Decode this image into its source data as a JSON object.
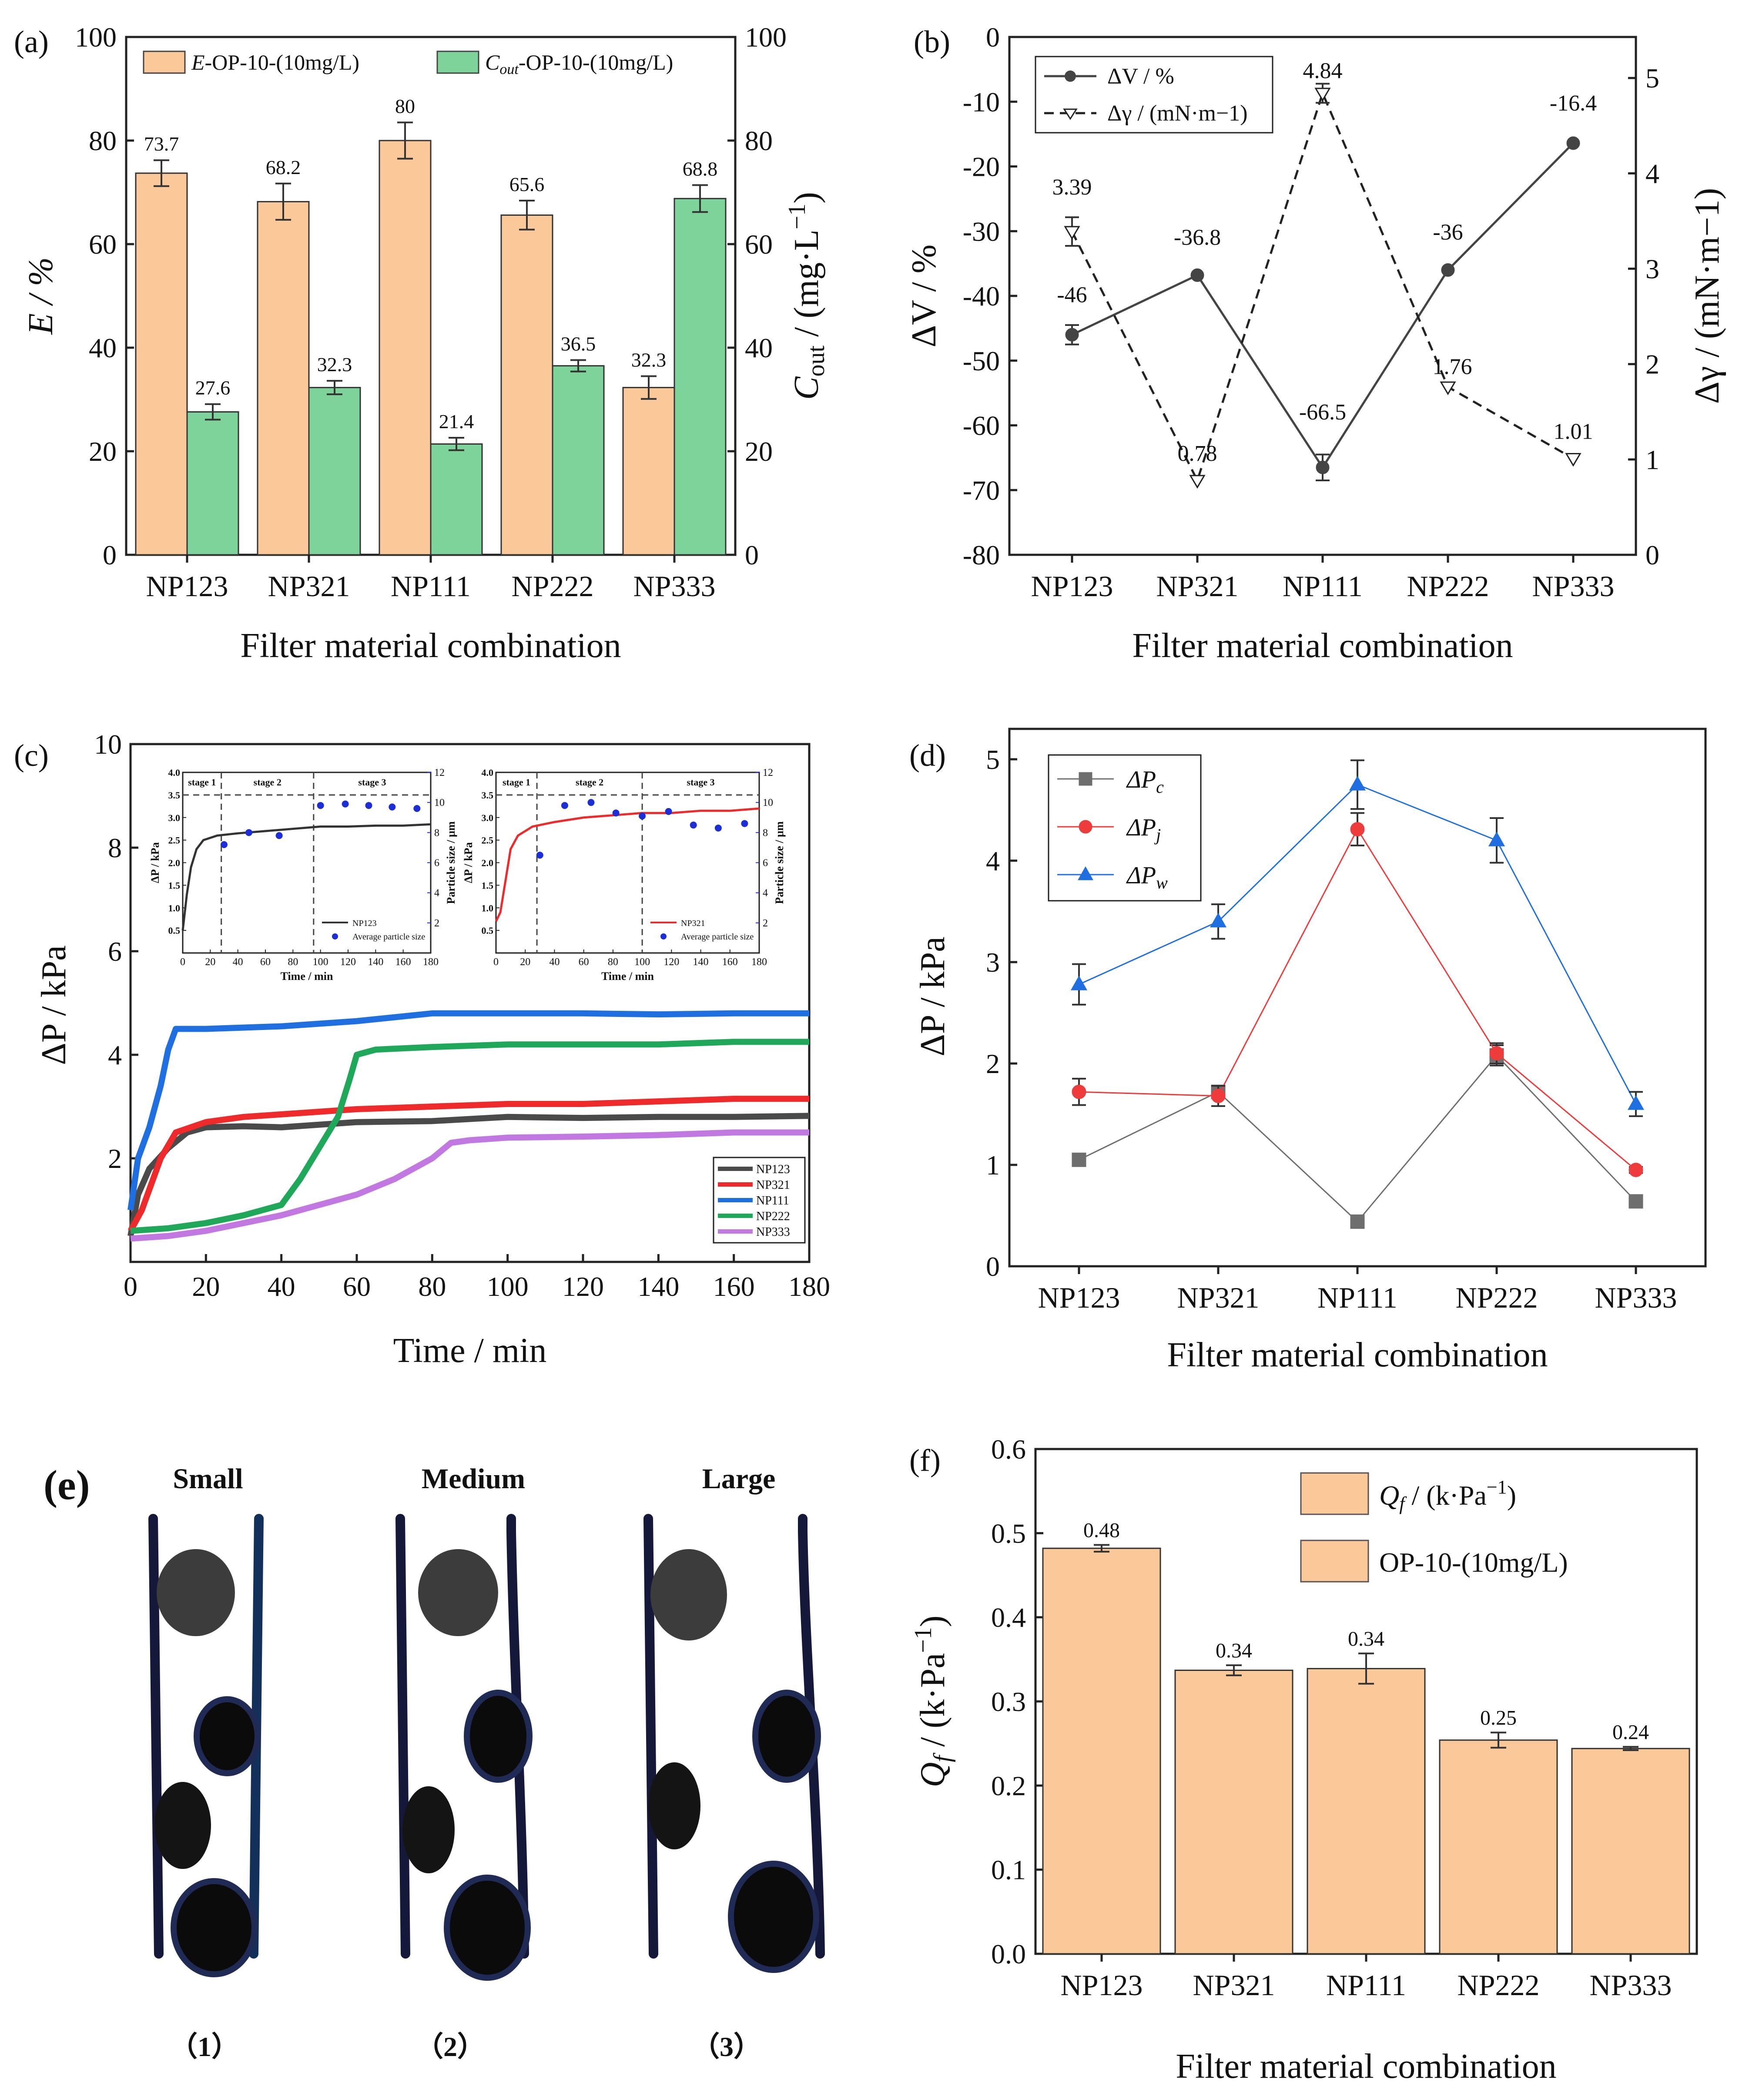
{
  "figure": {
    "panel_labels": [
      "(a)",
      "(b)",
      "(c)",
      "(d)",
      "(e)",
      "(f)"
    ]
  },
  "chart_data": [
    {
      "id": "a",
      "type": "bar",
      "categories": [
        "NP123",
        "NP321",
        "NP111",
        "NP222",
        "NP333"
      ],
      "series": [
        {
          "name": "E-OP-10-(10mg/L)",
          "name_main": "E",
          "name_rest": "-OP-10-(10mg/L)",
          "axis": "left",
          "color": "#FBC89A",
          "values": [
            73.7,
            68.2,
            80.0,
            65.6,
            32.3
          ],
          "labels": [
            "73.7",
            "68.2",
            "80",
            "65.6",
            "32.3"
          ],
          "errors": [
            2.5,
            3.5,
            3.5,
            2.8,
            2.2
          ]
        },
        {
          "name": "Cout-OP-10-(10mg/L)",
          "name_main": "C",
          "name_sub": "out",
          "name_rest": "-OP-10-(10mg/L)",
          "axis": "right",
          "color": "#7DD39A",
          "values": [
            27.6,
            32.3,
            21.4,
            36.5,
            68.8
          ],
          "labels": [
            "27.6",
            "32.3",
            "21.4",
            "36.5",
            "68.8"
          ],
          "errors": [
            1.5,
            1.3,
            1.2,
            1.1,
            2.6
          ]
        }
      ],
      "xlabel": "Filter material combination",
      "ylabel": "E / %",
      "y2label": "Cout / (mg·L−1)",
      "ylim": [
        0,
        100
      ],
      "y2lim": [
        0,
        100
      ],
      "yticks": [
        0,
        20,
        40,
        60,
        80,
        100
      ],
      "y2ticks": [
        0,
        20,
        40,
        60,
        80,
        100
      ]
    },
    {
      "id": "b",
      "type": "line",
      "categories": [
        "NP123",
        "NP321",
        "NP111",
        "NP222",
        "NP333"
      ],
      "series": [
        {
          "name": "ΔV / %",
          "axis": "left",
          "style": "solid",
          "marker": "circle",
          "values": [
            -46,
            -36.8,
            -66.5,
            -36,
            -16.4
          ],
          "labels": [
            "-46",
            "-36.8",
            "-66.5",
            "-36",
            "-16.4"
          ],
          "errors": [
            1.5,
            0,
            2.0,
            0,
            0
          ]
        },
        {
          "name": "Δγ / (mN·m−1)",
          "axis": "right",
          "style": "dashed",
          "marker": "triangle-down",
          "values": [
            3.39,
            0.78,
            4.84,
            1.76,
            1.01
          ],
          "labels": [
            "3.39",
            "0.78",
            "4.84",
            "1.76",
            "1.01"
          ],
          "errors": [
            0.15,
            0,
            0.1,
            0,
            0
          ]
        }
      ],
      "xlabel": "Filter material combination",
      "ylabel": "ΔV / %",
      "y2label": "Δγ / (mN·m−1)",
      "ylim": [
        -80,
        0
      ],
      "y2lim": [
        0,
        5.43
      ],
      "yticks": [
        -80,
        -70,
        -60,
        -50,
        -40,
        -30,
        -20,
        -10,
        0
      ],
      "y2ticks": [
        0,
        1,
        2,
        3,
        4,
        5
      ]
    },
    {
      "id": "c",
      "type": "line",
      "xlabel": "Time / min",
      "ylabel": "ΔP / kPa",
      "xlim": [
        0,
        180
      ],
      "ylim": [
        0,
        10
      ],
      "xticks": [
        0,
        20,
        40,
        60,
        80,
        100,
        120,
        140,
        160,
        180
      ],
      "yticks": [
        2,
        4,
        6,
        8,
        10
      ],
      "series": [
        {
          "name": "NP123",
          "color": "#4a4a4a",
          "points": [
            [
              0,
              0.5
            ],
            [
              2,
              1.3
            ],
            [
              5,
              1.8
            ],
            [
              10,
              2.2
            ],
            [
              15,
              2.5
            ],
            [
              20,
              2.6
            ],
            [
              30,
              2.62
            ],
            [
              40,
              2.6
            ],
            [
              60,
              2.7
            ],
            [
              80,
              2.72
            ],
            [
              100,
              2.8
            ],
            [
              120,
              2.78
            ],
            [
              140,
              2.8
            ],
            [
              160,
              2.8
            ],
            [
              180,
              2.82
            ]
          ]
        },
        {
          "name": "NP321",
          "color": "#ee2a2a",
          "points": [
            [
              0,
              0.6
            ],
            [
              3,
              1.0
            ],
            [
              5,
              1.4
            ],
            [
              8,
              2.0
            ],
            [
              12,
              2.5
            ],
            [
              20,
              2.7
            ],
            [
              30,
              2.8
            ],
            [
              40,
              2.85
            ],
            [
              60,
              2.95
            ],
            [
              80,
              3.0
            ],
            [
              100,
              3.05
            ],
            [
              120,
              3.05
            ],
            [
              140,
              3.1
            ],
            [
              160,
              3.15
            ],
            [
              180,
              3.15
            ]
          ]
        },
        {
          "name": "NP111",
          "color": "#1f6fe0",
          "points": [
            [
              0,
              1.0
            ],
            [
              2,
              2.0
            ],
            [
              5,
              2.6
            ],
            [
              8,
              3.4
            ],
            [
              10,
              4.1
            ],
            [
              12,
              4.5
            ],
            [
              20,
              4.5
            ],
            [
              40,
              4.55
            ],
            [
              60,
              4.65
            ],
            [
              80,
              4.8
            ],
            [
              100,
              4.8
            ],
            [
              120,
              4.8
            ],
            [
              140,
              4.78
            ],
            [
              160,
              4.8
            ],
            [
              180,
              4.8
            ]
          ]
        },
        {
          "name": "NP222",
          "color": "#1fa85a",
          "points": [
            [
              0,
              0.6
            ],
            [
              10,
              0.65
            ],
            [
              20,
              0.75
            ],
            [
              30,
              0.9
            ],
            [
              40,
              1.1
            ],
            [
              45,
              1.6
            ],
            [
              50,
              2.2
            ],
            [
              55,
              2.8
            ],
            [
              58,
              3.5
            ],
            [
              60,
              4.0
            ],
            [
              65,
              4.1
            ],
            [
              80,
              4.15
            ],
            [
              100,
              4.2
            ],
            [
              120,
              4.2
            ],
            [
              140,
              4.2
            ],
            [
              160,
              4.25
            ],
            [
              180,
              4.25
            ]
          ]
        },
        {
          "name": "NP333",
          "color": "#c178e0",
          "points": [
            [
              0,
              0.45
            ],
            [
              10,
              0.5
            ],
            [
              20,
              0.6
            ],
            [
              40,
              0.9
            ],
            [
              50,
              1.1
            ],
            [
              60,
              1.3
            ],
            [
              70,
              1.6
            ],
            [
              80,
              2.0
            ],
            [
              85,
              2.3
            ],
            [
              90,
              2.35
            ],
            [
              100,
              2.4
            ],
            [
              120,
              2.42
            ],
            [
              140,
              2.45
            ],
            [
              160,
              2.5
            ],
            [
              180,
              2.5
            ]
          ]
        }
      ],
      "insets": [
        {
          "series_name": "NP123",
          "color": "#333333",
          "marker_series": "Average particle size",
          "xlabel": "Time / min",
          "ylabel": "ΔP / kPa",
          "y2label": "Particle size / μm",
          "xlim": [
            0,
            180
          ],
          "ylim": [
            0,
            4.0
          ],
          "y2lim": [
            0,
            12
          ],
          "xticks": [
            0,
            20,
            40,
            60,
            80,
            100,
            120,
            140,
            160,
            180
          ],
          "yticks": [
            0.5,
            1.0,
            1.5,
            2.0,
            2.5,
            3.0,
            3.5,
            4.0
          ],
          "ytick_labels": [
            "0.5",
            "1.0",
            "1.5",
            "2.0",
            "2.5",
            "3.0",
            "3.5",
            "4.0"
          ],
          "y2ticks": [
            2,
            4,
            6,
            8,
            10,
            12
          ],
          "stages": [
            "stage 1",
            "stage 2",
            "stage 3"
          ],
          "stage_bounds": [
            28,
            95
          ],
          "curve": [
            [
              0,
              0.5
            ],
            [
              3,
              1.3
            ],
            [
              6,
              1.9
            ],
            [
              10,
              2.3
            ],
            [
              15,
              2.5
            ],
            [
              25,
              2.6
            ],
            [
              40,
              2.65
            ],
            [
              60,
              2.7
            ],
            [
              80,
              2.75
            ],
            [
              100,
              2.8
            ],
            [
              120,
              2.8
            ],
            [
              140,
              2.82
            ],
            [
              160,
              2.82
            ],
            [
              180,
              2.85
            ]
          ],
          "particles": [
            [
              30,
              7.2
            ],
            [
              48,
              8.0
            ],
            [
              70,
              7.8
            ],
            [
              100,
              9.8
            ],
            [
              118,
              9.9
            ],
            [
              135,
              9.8
            ],
            [
              152,
              9.7
            ],
            [
              170,
              9.6
            ]
          ]
        },
        {
          "series_name": "NP321",
          "color": "#ee2a2a",
          "marker_series": "Average particle size",
          "xlabel": "Time / min",
          "ylabel": "ΔP / kPa",
          "y2label": "Particle size / μm",
          "xlim": [
            0,
            180
          ],
          "ylim": [
            0,
            4.0
          ],
          "y2lim": [
            0,
            12
          ],
          "xticks": [
            0,
            20,
            40,
            60,
            80,
            100,
            120,
            140,
            160,
            180
          ],
          "yticks": [
            0.5,
            1.0,
            1.5,
            2.0,
            2.5,
            3.0,
            3.5,
            4.0
          ],
          "ytick_labels": [
            "0.5",
            "1.0",
            "1.5",
            "2.0",
            "2.5",
            "3.0",
            "3.5",
            "4.0"
          ],
          "y2ticks": [
            2,
            4,
            6,
            8,
            10,
            12
          ],
          "stages": [
            "stage 1",
            "stage 2",
            "stage 3"
          ],
          "stage_bounds": [
            28,
            100
          ],
          "curve": [
            [
              0,
              0.7
            ],
            [
              3,
              0.9
            ],
            [
              6,
              1.5
            ],
            [
              10,
              2.3
            ],
            [
              15,
              2.6
            ],
            [
              25,
              2.8
            ],
            [
              40,
              2.9
            ],
            [
              60,
              3.0
            ],
            [
              80,
              3.05
            ],
            [
              100,
              3.1
            ],
            [
              120,
              3.1
            ],
            [
              140,
              3.15
            ],
            [
              160,
              3.15
            ],
            [
              180,
              3.2
            ]
          ],
          "particles": [
            [
              30,
              6.5
            ],
            [
              47,
              9.8
            ],
            [
              65,
              10.0
            ],
            [
              82,
              9.3
            ],
            [
              100,
              9.1
            ],
            [
              118,
              9.4
            ],
            [
              135,
              8.5
            ],
            [
              152,
              8.3
            ],
            [
              170,
              8.6
            ]
          ]
        }
      ]
    },
    {
      "id": "d",
      "type": "line",
      "categories": [
        "NP123",
        "NP321",
        "NP111",
        "NP222",
        "NP333"
      ],
      "xlabel": "Filter material combination",
      "ylabel": "ΔP / kPa",
      "ylim": [
        0,
        5.3
      ],
      "yticks": [
        0,
        1,
        2,
        3,
        4,
        5
      ],
      "series": [
        {
          "name": "ΔPc",
          "name_main": "ΔP",
          "name_sub": "c",
          "marker": "square",
          "color": "#6e6e6e",
          "values": [
            1.05,
            1.72,
            0.44,
            2.08,
            0.64
          ],
          "errors": [
            0.04,
            0.06,
            0.03,
            0.1,
            0.04
          ]
        },
        {
          "name": "ΔPj",
          "name_main": "ΔP",
          "name_sub": "j",
          "marker": "circle",
          "color": "#ee3c3c",
          "values": [
            1.72,
            1.68,
            4.31,
            2.1,
            0.95
          ],
          "errors": [
            0.13,
            0.1,
            0.16,
            0.1,
            0.03
          ]
        },
        {
          "name": "ΔPw",
          "name_main": "ΔP",
          "name_sub": "w",
          "marker": "triangle-up",
          "color": "#1f6fe0",
          "values": [
            2.78,
            3.4,
            4.75,
            4.2,
            1.6
          ],
          "errors": [
            0.2,
            0.17,
            0.24,
            0.22,
            0.12
          ]
        }
      ]
    },
    {
      "id": "f",
      "type": "bar",
      "categories": [
        "NP123",
        "NP321",
        "NP111",
        "NP222",
        "NP333"
      ],
      "values": [
        0.482,
        0.337,
        0.339,
        0.254,
        0.244
      ],
      "labels": [
        "0.48",
        "0.34",
        "0.34",
        "0.25",
        "0.24"
      ],
      "errors": [
        0.004,
        0.006,
        0.018,
        0.009,
        0.002
      ],
      "color": "#FBC89A",
      "legend": [
        "Qf / (k·Pa−1)",
        "OP-10-(10mg/L)"
      ],
      "legend_main": "Q",
      "legend_sub": "f",
      "legend_rest": " / (k·Pa",
      "legend_sup": "−1",
      "legend_close": ")",
      "xlabel": "Filter material combination",
      "ylabel": "Qf / (k·Pa−1)",
      "ylim": [
        0,
        0.6
      ],
      "yticks": [
        0.0,
        0.1,
        0.2,
        0.3,
        0.4,
        0.5,
        0.6
      ],
      "ytick_labels": [
        "0.0",
        "0.1",
        "0.2",
        "0.3",
        "0.4",
        "0.5",
        "0.6"
      ]
    }
  ],
  "diagram_e": {
    "columns": [
      {
        "title": "Small",
        "caption": "（1）"
      },
      {
        "title": "Medium",
        "caption": "（2）"
      },
      {
        "title": "Large",
        "caption": "（3）"
      }
    ]
  }
}
